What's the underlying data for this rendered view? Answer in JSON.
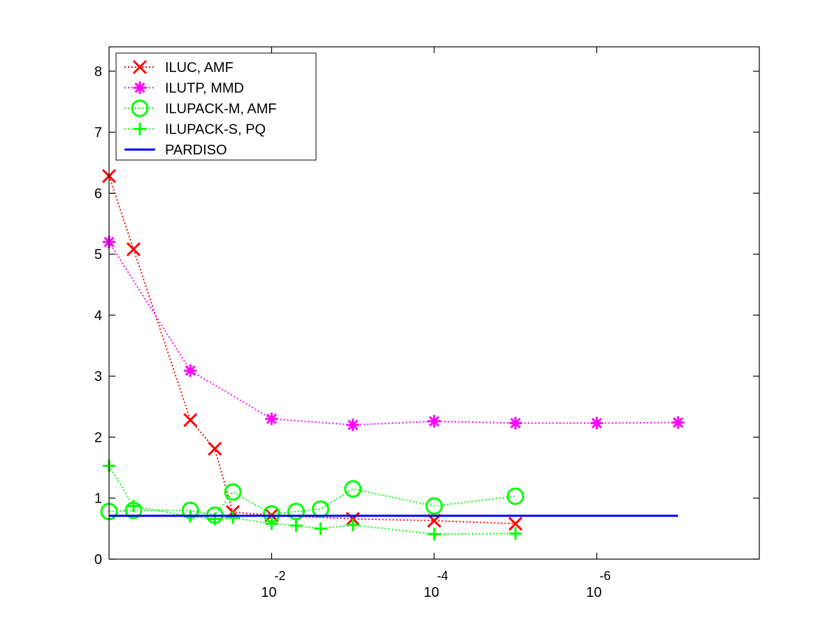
{
  "chart_data": {
    "type": "line",
    "title": "",
    "xlabel": "",
    "ylabel": "",
    "x_scale": "log-reversed",
    "xlim": [
      1,
      1e-08
    ],
    "ylim": [
      0,
      8.4
    ],
    "y_ticks": [
      0,
      1,
      2,
      3,
      4,
      5,
      6,
      7,
      8
    ],
    "y_tick_labels": [
      "0",
      "1",
      "2",
      "3",
      "4",
      "5",
      "6",
      "7",
      "8"
    ],
    "x_ticks": [
      {
        "value": 0.01,
        "base": "10",
        "exponent": "-2"
      },
      {
        "value": 0.0001,
        "base": "10",
        "exponent": "-4"
      },
      {
        "value": 1e-06,
        "base": "10",
        "exponent": "-6"
      }
    ],
    "grid": false,
    "legend_position": "top-left",
    "series": [
      {
        "name": "ILUC, AMF",
        "color": "#ff0000",
        "marker": "x",
        "line_style": "dotted",
        "points": [
          [
            1.0,
            6.28
          ],
          [
            0.5,
            5.08
          ],
          [
            0.1,
            2.28
          ],
          [
            0.05,
            1.81
          ],
          [
            0.03,
            0.77
          ],
          [
            0.01,
            0.72
          ],
          [
            0.001,
            0.66
          ],
          [
            0.0001,
            0.63
          ],
          [
            1e-05,
            0.58
          ]
        ]
      },
      {
        "name": "ILUTP, MMD",
        "color": "#ff00ff",
        "marker": "asterisk",
        "line_style": "dotted",
        "points": [
          [
            1.0,
            5.2
          ],
          [
            0.1,
            3.09
          ],
          [
            0.01,
            2.3
          ],
          [
            0.001,
            2.2
          ],
          [
            0.0001,
            2.26
          ],
          [
            1e-05,
            2.23
          ],
          [
            1e-06,
            2.23
          ],
          [
            1e-07,
            2.24
          ]
        ]
      },
      {
        "name": "ILUPACK-M, AMF",
        "color": "#00ff00",
        "marker": "circle",
        "line_style": "dotted",
        "points": [
          [
            1.0,
            0.78
          ],
          [
            0.5,
            0.8
          ],
          [
            0.1,
            0.8
          ],
          [
            0.05,
            0.72
          ],
          [
            0.03,
            1.1
          ],
          [
            0.01,
            0.74
          ],
          [
            0.005,
            0.78
          ],
          [
            0.0025,
            0.82
          ],
          [
            0.001,
            1.15
          ],
          [
            0.0001,
            0.87
          ],
          [
            1e-05,
            1.03
          ]
        ]
      },
      {
        "name": "ILUPACK-S, PQ",
        "color": "#00ff00",
        "marker": "plus",
        "line_style": "dotted",
        "points": [
          [
            1.0,
            1.53
          ],
          [
            0.5,
            0.87
          ],
          [
            0.1,
            0.7
          ],
          [
            0.05,
            0.66
          ],
          [
            0.03,
            0.68
          ],
          [
            0.01,
            0.58
          ],
          [
            0.005,
            0.55
          ],
          [
            0.0025,
            0.5
          ],
          [
            0.001,
            0.56
          ],
          [
            0.0001,
            0.41
          ],
          [
            1e-05,
            0.42
          ]
        ]
      },
      {
        "name": "PARDISO",
        "color": "#0000ff",
        "marker": "none",
        "line_style": "solid",
        "points": [
          [
            1.0,
            0.71
          ],
          [
            1e-07,
            0.71
          ]
        ]
      }
    ]
  }
}
